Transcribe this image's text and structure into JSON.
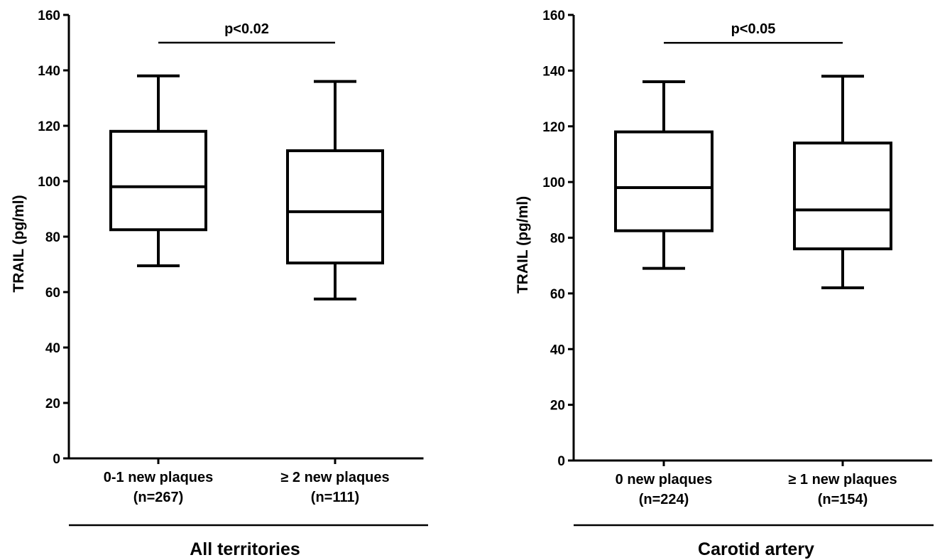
{
  "chart_data": [
    {
      "type": "box",
      "ylabel": "TRAIL (pg/ml)",
      "ylim": [
        0,
        160
      ],
      "yticks": [
        0,
        20,
        40,
        60,
        80,
        100,
        120,
        140,
        160
      ],
      "group_label": "All territories",
      "categories": [
        {
          "label": "0-1 new plaques",
          "n_label": "(n=267)"
        },
        {
          "label": "≥ 2 new plaques",
          "n_label": "(n=111)"
        }
      ],
      "boxes": [
        {
          "whisker_low": 69.5,
          "q1": 82.5,
          "median": 98,
          "q3": 118,
          "whisker_high": 138
        },
        {
          "whisker_low": 57.5,
          "q1": 70.5,
          "median": 89,
          "q3": 111,
          "whisker_high": 136
        }
      ],
      "significance": {
        "label": "p<0.02",
        "y": 150
      }
    },
    {
      "type": "box",
      "ylabel": "TRAIL (pg/ml)",
      "ylim": [
        0,
        160
      ],
      "yticks": [
        0,
        20,
        40,
        60,
        80,
        100,
        120,
        140,
        160
      ],
      "group_label": "Carotid artery",
      "categories": [
        {
          "label": "0 new plaques",
          "n_label": "(n=224)"
        },
        {
          "label": "≥ 1 new plaques",
          "n_label": "(n=154)"
        }
      ],
      "boxes": [
        {
          "whisker_low": 69,
          "q1": 82.5,
          "median": 98,
          "q3": 118,
          "whisker_high": 136
        },
        {
          "whisker_low": 62,
          "q1": 76,
          "median": 90,
          "q3": 114,
          "whisker_high": 138
        }
      ],
      "significance": {
        "label": "p<0.05",
        "y": 150
      }
    }
  ]
}
